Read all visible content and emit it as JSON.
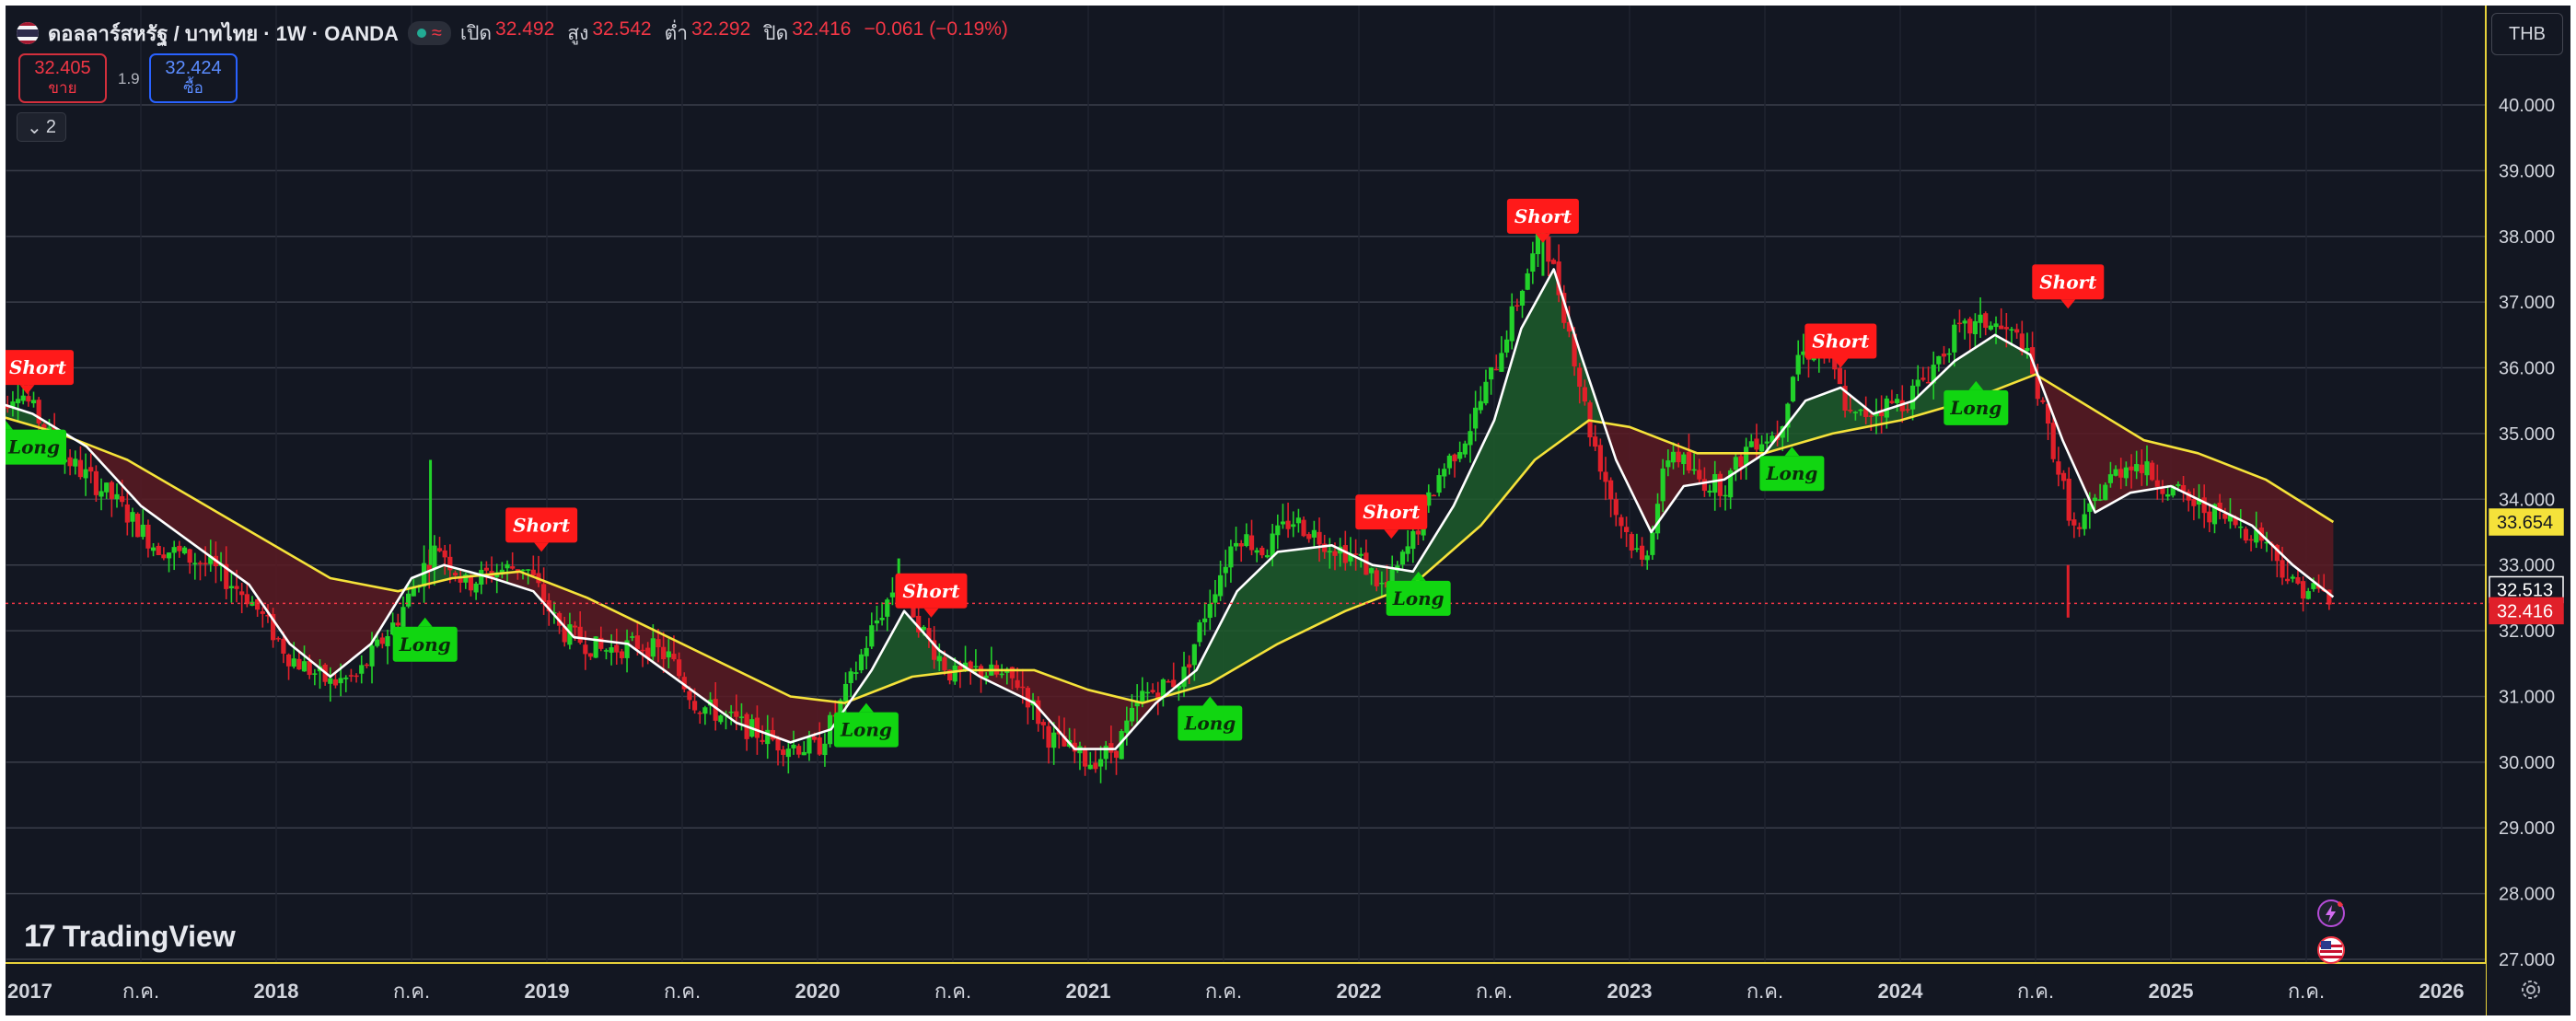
{
  "header": {
    "symbol_title": "ดอลลาร์สหรัฐ / บาทไทย · 1W · OANDA",
    "ohlc": [
      {
        "k": "เปิด",
        "v": "32.492"
      },
      {
        "k": "สูง",
        "v": "32.542"
      },
      {
        "k": "ต่ำ",
        "v": "32.292"
      },
      {
        "k": "ปิด",
        "v": "32.416"
      }
    ],
    "change": "−0.061 (−0.19%)"
  },
  "quote": {
    "sell_price": "32.405",
    "sell_label": "ขาย",
    "spread": "1.9",
    "buy_price": "32.424",
    "buy_label": "ซื้อ"
  },
  "indicators_count": "2",
  "currency": "THB",
  "branding": "TradingView",
  "colors": {
    "background": "#131722",
    "up_candle": "#22d12a",
    "down_candle": "#e0202a",
    "fast_ma": "#ffffff",
    "slow_ma": "#f5e23a",
    "bear_fill": "#5a1a22",
    "bull_fill": "#1d5c2a",
    "long_signal": "#11d611",
    "short_signal": "#ff1a1a"
  },
  "chart_data": {
    "type": "candlestick",
    "ylim": [
      27.0,
      41.0
    ],
    "y_ticks": [
      "40.000",
      "39.000",
      "38.000",
      "37.000",
      "36.000",
      "35.000",
      "34.000",
      "33.000",
      "32.000",
      "31.000",
      "30.000",
      "29.000",
      "28.000",
      "27.000"
    ],
    "x_ticks": [
      {
        "label": "2017",
        "t": 2017.0
      },
      {
        "label": "ก.ค.",
        "t": 2017.5
      },
      {
        "label": "2018",
        "t": 2018.0
      },
      {
        "label": "ก.ค.",
        "t": 2018.5
      },
      {
        "label": "2019",
        "t": 2019.0
      },
      {
        "label": "ก.ค.",
        "t": 2019.5
      },
      {
        "label": "2020",
        "t": 2020.0
      },
      {
        "label": "ก.ค.",
        "t": 2020.5
      },
      {
        "label": "2021",
        "t": 2021.0
      },
      {
        "label": "ก.ค.",
        "t": 2021.5
      },
      {
        "label": "2022",
        "t": 2022.0
      },
      {
        "label": "ก.ค.",
        "t": 2022.5
      },
      {
        "label": "2023",
        "t": 2023.0
      },
      {
        "label": "ก.ค.",
        "t": 2023.5
      },
      {
        "label": "2024",
        "t": 2024.0
      },
      {
        "label": "ก.ค.",
        "t": 2024.5
      },
      {
        "label": "2025",
        "t": 2025.0
      },
      {
        "label": "ก.ค.",
        "t": 2025.5
      },
      {
        "label": "2026",
        "t": 2026.0
      }
    ],
    "price_path": [
      [
        2016.95,
        35.3
      ],
      [
        2017.05,
        35.7
      ],
      [
        2017.2,
        34.7
      ],
      [
        2017.4,
        34.0
      ],
      [
        2017.55,
        33.3
      ],
      [
        2017.75,
        33.0
      ],
      [
        2017.9,
        32.5
      ],
      [
        2018.05,
        31.6
      ],
      [
        2018.2,
        31.2
      ],
      [
        2018.3,
        31.3
      ],
      [
        2018.45,
        32.2
      ],
      [
        2018.55,
        33.0
      ],
      [
        2018.6,
        33.3
      ],
      [
        2018.7,
        32.7
      ],
      [
        2018.8,
        32.9
      ],
      [
        2018.92,
        33.0
      ],
      [
        2019.05,
        32.0
      ],
      [
        2019.2,
        31.7
      ],
      [
        2019.35,
        31.8
      ],
      [
        2019.45,
        31.6
      ],
      [
        2019.55,
        30.9
      ],
      [
        2019.7,
        30.6
      ],
      [
        2019.85,
        30.3
      ],
      [
        2020.0,
        30.2
      ],
      [
        2020.1,
        31.0
      ],
      [
        2020.2,
        32.0
      ],
      [
        2020.3,
        32.8
      ],
      [
        2020.4,
        31.9
      ],
      [
        2020.5,
        31.3
      ],
      [
        2020.6,
        31.4
      ],
      [
        2020.75,
        31.2
      ],
      [
        2020.85,
        30.4
      ],
      [
        2021.0,
        30.0
      ],
      [
        2021.1,
        30.2
      ],
      [
        2021.2,
        31.0
      ],
      [
        2021.35,
        31.3
      ],
      [
        2021.45,
        32.5
      ],
      [
        2021.55,
        33.5
      ],
      [
        2021.65,
        33.2
      ],
      [
        2021.75,
        33.7
      ],
      [
        2021.9,
        33.3
      ],
      [
        2022.0,
        33.1
      ],
      [
        2022.1,
        32.6
      ],
      [
        2022.2,
        33.4
      ],
      [
        2022.3,
        34.4
      ],
      [
        2022.4,
        35.0
      ],
      [
        2022.5,
        36.0
      ],
      [
        2022.6,
        37.2
      ],
      [
        2022.68,
        38.1
      ],
      [
        2022.78,
        36.5
      ],
      [
        2022.85,
        35.1
      ],
      [
        2022.95,
        33.8
      ],
      [
        2023.05,
        33.0
      ],
      [
        2023.15,
        34.8
      ],
      [
        2023.25,
        34.3
      ],
      [
        2023.35,
        34.2
      ],
      [
        2023.45,
        34.9
      ],
      [
        2023.55,
        35.0
      ],
      [
        2023.62,
        36.2
      ],
      [
        2023.72,
        36.3
      ],
      [
        2023.82,
        35.2
      ],
      [
        2023.92,
        35.4
      ],
      [
        2024.02,
        35.5
      ],
      [
        2024.1,
        35.9
      ],
      [
        2024.2,
        36.5
      ],
      [
        2024.32,
        36.7
      ],
      [
        2024.45,
        36.4
      ],
      [
        2024.55,
        35.0
      ],
      [
        2024.65,
        33.4
      ],
      [
        2024.75,
        34.2
      ],
      [
        2024.85,
        34.6
      ],
      [
        2024.95,
        34.3
      ],
      [
        2025.05,
        34.0
      ],
      [
        2025.15,
        33.8
      ],
      [
        2025.25,
        33.6
      ],
      [
        2025.35,
        33.4
      ],
      [
        2025.45,
        32.7
      ],
      [
        2025.55,
        32.6
      ],
      [
        2025.6,
        32.416
      ]
    ],
    "fast_ma": [
      [
        2016.95,
        35.5
      ],
      [
        2017.1,
        35.3
      ],
      [
        2017.3,
        34.8
      ],
      [
        2017.5,
        33.9
      ],
      [
        2017.7,
        33.3
      ],
      [
        2017.9,
        32.7
      ],
      [
        2018.05,
        31.8
      ],
      [
        2018.2,
        31.3
      ],
      [
        2018.35,
        31.8
      ],
      [
        2018.5,
        32.8
      ],
      [
        2018.62,
        33.0
      ],
      [
        2018.8,
        32.8
      ],
      [
        2018.95,
        32.6
      ],
      [
        2019.1,
        31.9
      ],
      [
        2019.3,
        31.8
      ],
      [
        2019.5,
        31.2
      ],
      [
        2019.7,
        30.6
      ],
      [
        2019.9,
        30.3
      ],
      [
        2020.05,
        30.5
      ],
      [
        2020.2,
        31.4
      ],
      [
        2020.32,
        32.3
      ],
      [
        2020.45,
        31.7
      ],
      [
        2020.6,
        31.3
      ],
      [
        2020.8,
        30.9
      ],
      [
        2020.95,
        30.2
      ],
      [
        2021.1,
        30.2
      ],
      [
        2021.25,
        30.9
      ],
      [
        2021.4,
        31.4
      ],
      [
        2021.55,
        32.6
      ],
      [
        2021.7,
        33.2
      ],
      [
        2021.9,
        33.3
      ],
      [
        2022.05,
        33.0
      ],
      [
        2022.2,
        32.9
      ],
      [
        2022.35,
        33.9
      ],
      [
        2022.5,
        35.2
      ],
      [
        2022.6,
        36.6
      ],
      [
        2022.72,
        37.5
      ],
      [
        2022.82,
        36.2
      ],
      [
        2022.95,
        34.6
      ],
      [
        2023.08,
        33.5
      ],
      [
        2023.2,
        34.2
      ],
      [
        2023.35,
        34.3
      ],
      [
        2023.5,
        34.7
      ],
      [
        2023.65,
        35.5
      ],
      [
        2023.78,
        35.7
      ],
      [
        2023.9,
        35.3
      ],
      [
        2024.05,
        35.5
      ],
      [
        2024.2,
        36.1
      ],
      [
        2024.35,
        36.5
      ],
      [
        2024.48,
        36.2
      ],
      [
        2024.6,
        34.9
      ],
      [
        2024.72,
        33.8
      ],
      [
        2024.85,
        34.1
      ],
      [
        2025.0,
        34.2
      ],
      [
        2025.15,
        33.9
      ],
      [
        2025.3,
        33.6
      ],
      [
        2025.45,
        33.0
      ],
      [
        2025.6,
        32.513
      ]
    ],
    "slow_ma": [
      [
        2016.95,
        35.3
      ],
      [
        2017.2,
        35.0
      ],
      [
        2017.45,
        34.6
      ],
      [
        2017.7,
        34.0
      ],
      [
        2017.95,
        33.4
      ],
      [
        2018.2,
        32.8
      ],
      [
        2018.45,
        32.6
      ],
      [
        2018.65,
        32.8
      ],
      [
        2018.9,
        32.9
      ],
      [
        2019.15,
        32.5
      ],
      [
        2019.4,
        32.0
      ],
      [
        2019.65,
        31.5
      ],
      [
        2019.9,
        31.0
      ],
      [
        2020.1,
        30.9
      ],
      [
        2020.35,
        31.3
      ],
      [
        2020.55,
        31.4
      ],
      [
        2020.8,
        31.4
      ],
      [
        2021.0,
        31.1
      ],
      [
        2021.2,
        30.9
      ],
      [
        2021.45,
        31.2
      ],
      [
        2021.7,
        31.8
      ],
      [
        2021.95,
        32.3
      ],
      [
        2022.2,
        32.7
      ],
      [
        2022.45,
        33.6
      ],
      [
        2022.65,
        34.6
      ],
      [
        2022.85,
        35.2
      ],
      [
        2023.0,
        35.1
      ],
      [
        2023.25,
        34.7
      ],
      [
        2023.5,
        34.7
      ],
      [
        2023.75,
        35.0
      ],
      [
        2024.0,
        35.2
      ],
      [
        2024.25,
        35.5
      ],
      [
        2024.5,
        35.9
      ],
      [
        2024.7,
        35.4
      ],
      [
        2024.9,
        34.9
      ],
      [
        2025.1,
        34.7
      ],
      [
        2025.35,
        34.3
      ],
      [
        2025.6,
        33.654
      ]
    ],
    "signals": [
      {
        "label": "Long",
        "type": "long",
        "t": 2017.0,
        "price": 35.2
      },
      {
        "label": "Short",
        "type": "short",
        "t": 2017.08,
        "price": 35.6
      },
      {
        "label": "Long",
        "type": "long",
        "t": 2018.55,
        "price": 32.2
      },
      {
        "label": "Short",
        "type": "short",
        "t": 2018.98,
        "price": 33.2
      },
      {
        "label": "Long",
        "type": "long",
        "t": 2020.18,
        "price": 30.9
      },
      {
        "label": "Short",
        "type": "short",
        "t": 2020.42,
        "price": 32.2
      },
      {
        "label": "Long",
        "type": "long",
        "t": 2021.45,
        "price": 31.0
      },
      {
        "label": "Short",
        "type": "short",
        "t": 2022.12,
        "price": 33.4
      },
      {
        "label": "Long",
        "type": "long",
        "t": 2022.22,
        "price": 32.9
      },
      {
        "label": "Short",
        "type": "short",
        "t": 2022.68,
        "price": 37.9
      },
      {
        "label": "Long",
        "type": "long",
        "t": 2023.6,
        "price": 34.8
      },
      {
        "label": "Short",
        "type": "short",
        "t": 2023.78,
        "price": 36.0
      },
      {
        "label": "Long",
        "type": "long",
        "t": 2024.28,
        "price": 35.8
      },
      {
        "label": "Short",
        "type": "short",
        "t": 2024.62,
        "price": 36.9
      }
    ],
    "price_labels": [
      {
        "value": 33.654,
        "text": "33.654",
        "kind": "slow_ma"
      },
      {
        "value": 32.513,
        "text": "32.513",
        "kind": "fast_ma"
      },
      {
        "value": 32.416,
        "text": "32.416",
        "kind": "last"
      }
    ],
    "last_price": 32.416
  }
}
